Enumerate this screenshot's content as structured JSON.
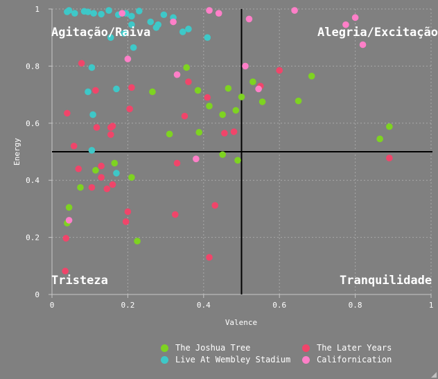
{
  "chart_data": {
    "type": "scatter",
    "xlabel": "Valence",
    "ylabel": "Energy",
    "xlim": [
      0,
      1
    ],
    "ylim": [
      0,
      1
    ],
    "xticks": [
      "0",
      "0.2",
      "0.4",
      "0.6",
      "0.8",
      "1"
    ],
    "yticks": [
      "0",
      "0.2",
      "0.4",
      "0.6",
      "0.8",
      "1"
    ],
    "grid": true,
    "quadrant_labels": {
      "top_left": "Agitação/Raiva",
      "top_right": "Alegria/Excitação",
      "bottom_left": "Tristeza",
      "bottom_right": "Tranquilidade"
    },
    "reference_lines": {
      "x": 0.5,
      "y": 0.5
    },
    "legend_position": "bottom",
    "series": [
      {
        "name": "The Joshua Tree",
        "color": "#7ed321",
        "points": [
          [
            0.04,
            0.25
          ],
          [
            0.045,
            0.305
          ],
          [
            0.075,
            0.375
          ],
          [
            0.115,
            0.435
          ],
          [
            0.165,
            0.46
          ],
          [
            0.21,
            0.41
          ],
          [
            0.225,
            0.187
          ],
          [
            0.265,
            0.71
          ],
          [
            0.31,
            0.562
          ],
          [
            0.355,
            0.795
          ],
          [
            0.385,
            0.715
          ],
          [
            0.388,
            0.568
          ],
          [
            0.415,
            0.66
          ],
          [
            0.45,
            0.63
          ],
          [
            0.465,
            0.722
          ],
          [
            0.485,
            0.645
          ],
          [
            0.45,
            0.49
          ],
          [
            0.49,
            0.47
          ],
          [
            0.5,
            0.692
          ],
          [
            0.53,
            0.745
          ],
          [
            0.555,
            0.675
          ],
          [
            0.65,
            0.678
          ],
          [
            0.685,
            0.765
          ],
          [
            0.865,
            0.545
          ],
          [
            0.89,
            0.588
          ]
        ]
      },
      {
        "name": "Live At Wembley Stadium",
        "color": "#3ec8c8",
        "points": [
          [
            0.04,
            0.99
          ],
          [
            0.045,
            0.995
          ],
          [
            0.06,
            0.985
          ],
          [
            0.085,
            0.992
          ],
          [
            0.095,
            0.99
          ],
          [
            0.11,
            0.985
          ],
          [
            0.13,
            0.982
          ],
          [
            0.15,
            0.995
          ],
          [
            0.155,
            0.9
          ],
          [
            0.175,
            0.98
          ],
          [
            0.19,
            0.915
          ],
          [
            0.195,
            0.985
          ],
          [
            0.21,
            0.975
          ],
          [
            0.21,
            0.945
          ],
          [
            0.215,
            0.865
          ],
          [
            0.23,
            0.993
          ],
          [
            0.26,
            0.955
          ],
          [
            0.275,
            0.935
          ],
          [
            0.28,
            0.945
          ],
          [
            0.295,
            0.98
          ],
          [
            0.32,
            0.97
          ],
          [
            0.345,
            0.92
          ],
          [
            0.36,
            0.93
          ],
          [
            0.41,
            0.9
          ],
          [
            0.095,
            0.71
          ],
          [
            0.105,
            0.795
          ],
          [
            0.108,
            0.63
          ],
          [
            0.105,
            0.505
          ],
          [
            0.17,
            0.72
          ],
          [
            0.17,
            0.425
          ]
        ]
      },
      {
        "name": "The Later Years",
        "color": "#f0456a",
        "points": [
          [
            0.035,
            0.082
          ],
          [
            0.037,
            0.197
          ],
          [
            0.04,
            0.635
          ],
          [
            0.058,
            0.52
          ],
          [
            0.07,
            0.44
          ],
          [
            0.078,
            0.81
          ],
          [
            0.105,
            0.375
          ],
          [
            0.115,
            0.715
          ],
          [
            0.118,
            0.585
          ],
          [
            0.13,
            0.41
          ],
          [
            0.13,
            0.45
          ],
          [
            0.145,
            0.37
          ],
          [
            0.155,
            0.56
          ],
          [
            0.155,
            0.585
          ],
          [
            0.16,
            0.59
          ],
          [
            0.16,
            0.385
          ],
          [
            0.195,
            0.255
          ],
          [
            0.2,
            0.29
          ],
          [
            0.205,
            0.65
          ],
          [
            0.21,
            0.725
          ],
          [
            0.325,
            0.28
          ],
          [
            0.33,
            0.46
          ],
          [
            0.35,
            0.625
          ],
          [
            0.36,
            0.745
          ],
          [
            0.41,
            0.69
          ],
          [
            0.415,
            0.13
          ],
          [
            0.43,
            0.312
          ],
          [
            0.455,
            0.565
          ],
          [
            0.48,
            0.57
          ],
          [
            0.55,
            0.73
          ],
          [
            0.6,
            0.785
          ],
          [
            0.89,
            0.478
          ]
        ]
      },
      {
        "name": "Californication",
        "color": "#ff7fc8",
        "points": [
          [
            0.045,
            0.26
          ],
          [
            0.185,
            0.985
          ],
          [
            0.2,
            0.825
          ],
          [
            0.32,
            0.955
          ],
          [
            0.33,
            0.77
          ],
          [
            0.38,
            0.475
          ],
          [
            0.415,
            0.995
          ],
          [
            0.44,
            0.985
          ],
          [
            0.51,
            0.8
          ],
          [
            0.52,
            0.965
          ],
          [
            0.545,
            0.72
          ],
          [
            0.64,
            0.995
          ],
          [
            0.775,
            0.945
          ],
          [
            0.8,
            0.97
          ],
          [
            0.82,
            0.875
          ]
        ]
      }
    ]
  }
}
